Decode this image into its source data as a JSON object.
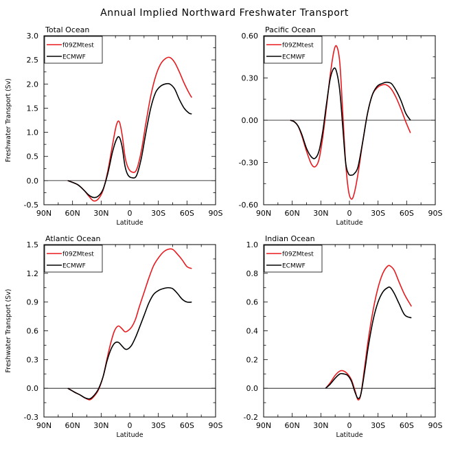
{
  "figure": {
    "title": "Annual Implied Northward Freshwater Transport"
  },
  "chart_data": [
    {
      "type": "line",
      "title": "Total Ocean",
      "xlabel": "Latitude",
      "ylabel": "Freshwater Transport (Sv)",
      "xlim": [
        90,
        -90
      ],
      "ylim": [
        -0.5,
        3.0
      ],
      "x_ticks": [
        90,
        60,
        30,
        0,
        -30,
        -60,
        -90
      ],
      "x_tick_labels": [
        "90N",
        "60N",
        "30N",
        "0",
        "30S",
        "60S",
        "90S"
      ],
      "y_ticks": [
        -0.5,
        0.0,
        0.5,
        1.0,
        1.5,
        2.0,
        2.5,
        3.0
      ],
      "y_tick_labels": [
        "-0.5",
        "0.0",
        "0.5",
        "1.0",
        "1.5",
        "2.0",
        "2.5",
        "3.0"
      ],
      "zero_line": true,
      "legend": {
        "position": "top-left"
      },
      "series": [
        {
          "name": "f09ZMtest",
          "color": "#e8191d",
          "x": [
            65,
            55,
            48,
            43,
            38,
            33,
            28,
            23,
            18,
            14,
            11,
            8,
            5,
            2,
            -2,
            -7,
            -12,
            -17,
            -22,
            -27,
            -32,
            -37,
            -42,
            -47,
            -52,
            -57,
            -62,
            -65
          ],
          "y": [
            0,
            -0.08,
            -0.2,
            -0.32,
            -0.42,
            -0.38,
            -0.2,
            0.2,
            0.75,
            1.15,
            1.22,
            0.95,
            0.5,
            0.28,
            0.18,
            0.22,
            0.6,
            1.2,
            1.75,
            2.15,
            2.4,
            2.52,
            2.55,
            2.45,
            2.25,
            2.02,
            1.82,
            1.72
          ]
        },
        {
          "name": "ECMWF",
          "color": "#000000",
          "x": [
            65,
            55,
            48,
            43,
            38,
            33,
            28,
            23,
            18,
            14,
            11,
            8,
            5,
            2,
            -2,
            -7,
            -12,
            -17,
            -22,
            -27,
            -32,
            -37,
            -42,
            -47,
            -52,
            -57,
            -62,
            -65
          ],
          "y": [
            0,
            -0.08,
            -0.2,
            -0.3,
            -0.35,
            -0.32,
            -0.18,
            0.15,
            0.6,
            0.85,
            0.9,
            0.7,
            0.3,
            0.12,
            0.06,
            0.1,
            0.45,
            1.0,
            1.5,
            1.82,
            1.95,
            2.0,
            2.0,
            1.9,
            1.68,
            1.5,
            1.4,
            1.38
          ]
        }
      ]
    },
    {
      "type": "line",
      "title": "Pacific Ocean",
      "xlabel": "Latitude",
      "ylabel": "",
      "xlim": [
        90,
        -90
      ],
      "ylim": [
        -0.6,
        0.6
      ],
      "x_ticks": [
        90,
        60,
        30,
        0,
        -30,
        -60,
        -90
      ],
      "x_tick_labels": [
        "90N",
        "60N",
        "30N",
        "0",
        "30S",
        "60S",
        "90S"
      ],
      "y_ticks": [
        -0.6,
        -0.3,
        0.0,
        0.3,
        0.6
      ],
      "y_tick_labels": [
        "-0.60",
        "-0.30",
        "0.00",
        "0.30",
        "0.60"
      ],
      "zero_line": true,
      "legend": {
        "position": "top-left"
      },
      "series": [
        {
          "name": "f09ZMtest",
          "color": "#e8191d",
          "x": [
            62,
            58,
            54,
            50,
            45,
            40,
            36,
            32,
            28,
            24,
            20,
            16,
            13,
            10,
            7,
            4,
            1,
            -2,
            -5,
            -9,
            -14,
            -19,
            -24,
            -29,
            -34,
            -39,
            -44,
            -49,
            -54,
            -59,
            -64
          ],
          "y": [
            0,
            -0.01,
            -0.04,
            -0.11,
            -0.22,
            -0.31,
            -0.33,
            -0.28,
            -0.12,
            0.1,
            0.33,
            0.5,
            0.52,
            0.4,
            0.05,
            -0.3,
            -0.5,
            -0.56,
            -0.52,
            -0.38,
            -0.15,
            0.05,
            0.18,
            0.23,
            0.25,
            0.25,
            0.22,
            0.16,
            0.08,
            -0.01,
            -0.09
          ]
        },
        {
          "name": "ECMWF",
          "color": "#000000",
          "x": [
            62,
            58,
            54,
            50,
            45,
            40,
            36,
            32,
            28,
            24,
            20,
            16,
            13,
            10,
            7,
            4,
            1,
            -2,
            -5,
            -9,
            -14,
            -19,
            -24,
            -29,
            -34,
            -39,
            -44,
            -49,
            -54,
            -59,
            -64
          ],
          "y": [
            0,
            -0.01,
            -0.04,
            -0.1,
            -0.2,
            -0.26,
            -0.27,
            -0.22,
            -0.08,
            0.12,
            0.3,
            0.37,
            0.33,
            0.2,
            -0.05,
            -0.3,
            -0.38,
            -0.39,
            -0.38,
            -0.33,
            -0.15,
            0.05,
            0.18,
            0.24,
            0.26,
            0.27,
            0.26,
            0.21,
            0.14,
            0.05,
            0.0
          ]
        }
      ]
    },
    {
      "type": "line",
      "title": "Atlantic Ocean",
      "xlabel": "Latitude",
      "ylabel": "Freshwater Transport (Sv)",
      "xlim": [
        90,
        -90
      ],
      "ylim": [
        -0.3,
        1.5
      ],
      "x_ticks": [
        90,
        60,
        30,
        0,
        -30,
        -60,
        -90
      ],
      "x_tick_labels": [
        "90N",
        "60N",
        "30N",
        "0",
        "30S",
        "60S",
        "90S"
      ],
      "y_ticks": [
        -0.3,
        0.0,
        0.3,
        0.6,
        0.9,
        1.2,
        1.5
      ],
      "y_tick_labels": [
        "-0.3",
        "0.0",
        "0.3",
        "0.6",
        "0.9",
        "1.2",
        "1.5"
      ],
      "zero_line": true,
      "legend": {
        "position": "top-left"
      },
      "series": [
        {
          "name": "f09ZMtest",
          "color": "#e8191d",
          "x": [
            65,
            58,
            52,
            47,
            42,
            38,
            33,
            28,
            24,
            20,
            16,
            12,
            8,
            5,
            2,
            -2,
            -6,
            -10,
            -15,
            -20,
            -25,
            -30,
            -35,
            -40,
            -45,
            -50,
            -55,
            -60,
            -65
          ],
          "y": [
            0,
            -0.04,
            -0.07,
            -0.1,
            -0.12,
            -0.09,
            -0.02,
            0.12,
            0.3,
            0.47,
            0.6,
            0.65,
            0.62,
            0.59,
            0.6,
            0.64,
            0.72,
            0.85,
            1.0,
            1.15,
            1.28,
            1.36,
            1.42,
            1.45,
            1.45,
            1.4,
            1.34,
            1.27,
            1.25
          ]
        },
        {
          "name": "ECMWF",
          "color": "#000000",
          "x": [
            65,
            58,
            52,
            47,
            42,
            38,
            33,
            28,
            24,
            20,
            16,
            12,
            8,
            5,
            2,
            -2,
            -6,
            -10,
            -15,
            -20,
            -25,
            -30,
            -35,
            -40,
            -45,
            -50,
            -55,
            -60,
            -65
          ],
          "y": [
            0,
            -0.04,
            -0.07,
            -0.1,
            -0.11,
            -0.08,
            -0.01,
            0.12,
            0.28,
            0.4,
            0.47,
            0.48,
            0.44,
            0.41,
            0.41,
            0.45,
            0.53,
            0.63,
            0.76,
            0.89,
            0.98,
            1.02,
            1.04,
            1.05,
            1.04,
            0.99,
            0.93,
            0.9,
            0.9
          ]
        }
      ]
    },
    {
      "type": "line",
      "title": "Indian Ocean",
      "xlabel": "Latitude",
      "ylabel": "",
      "xlim": [
        90,
        -90
      ],
      "ylim": [
        -0.2,
        1.0
      ],
      "x_ticks": [
        90,
        60,
        30,
        0,
        -30,
        -60,
        -90
      ],
      "x_tick_labels": [
        "90N",
        "60N",
        "30N",
        "0",
        "30S",
        "60S",
        "90S"
      ],
      "y_ticks": [
        -0.2,
        0.0,
        0.2,
        0.4,
        0.6,
        0.8,
        1.0
      ],
      "y_tick_labels": [
        "-0.2",
        "0.0",
        "0.2",
        "0.4",
        "0.6",
        "0.8",
        "1.0"
      ],
      "zero_line": true,
      "legend": {
        "position": "top-left"
      },
      "series": [
        {
          "name": "f09ZMtest",
          "color": "#e8191d",
          "x": [
            25,
            20,
            15,
            10,
            6,
            2,
            -2,
            -6,
            -9,
            -12,
            -16,
            -20,
            -25,
            -30,
            -35,
            -40,
            -43,
            -47,
            -52,
            -58,
            -65
          ],
          "y": [
            0,
            0.04,
            0.09,
            0.12,
            0.12,
            0.1,
            0.06,
            -0.02,
            -0.08,
            -0.04,
            0.15,
            0.35,
            0.55,
            0.7,
            0.8,
            0.85,
            0.85,
            0.82,
            0.74,
            0.65,
            0.57
          ]
        },
        {
          "name": "ECMWF",
          "color": "#000000",
          "x": [
            25,
            20,
            15,
            10,
            6,
            2,
            -2,
            -6,
            -9,
            -12,
            -16,
            -20,
            -25,
            -30,
            -35,
            -40,
            -43,
            -47,
            -52,
            -58,
            -65
          ],
          "y": [
            0,
            0.03,
            0.07,
            0.1,
            0.1,
            0.09,
            0.05,
            -0.03,
            -0.07,
            -0.04,
            0.12,
            0.3,
            0.48,
            0.6,
            0.67,
            0.7,
            0.7,
            0.66,
            0.59,
            0.51,
            0.49
          ]
        }
      ]
    }
  ]
}
